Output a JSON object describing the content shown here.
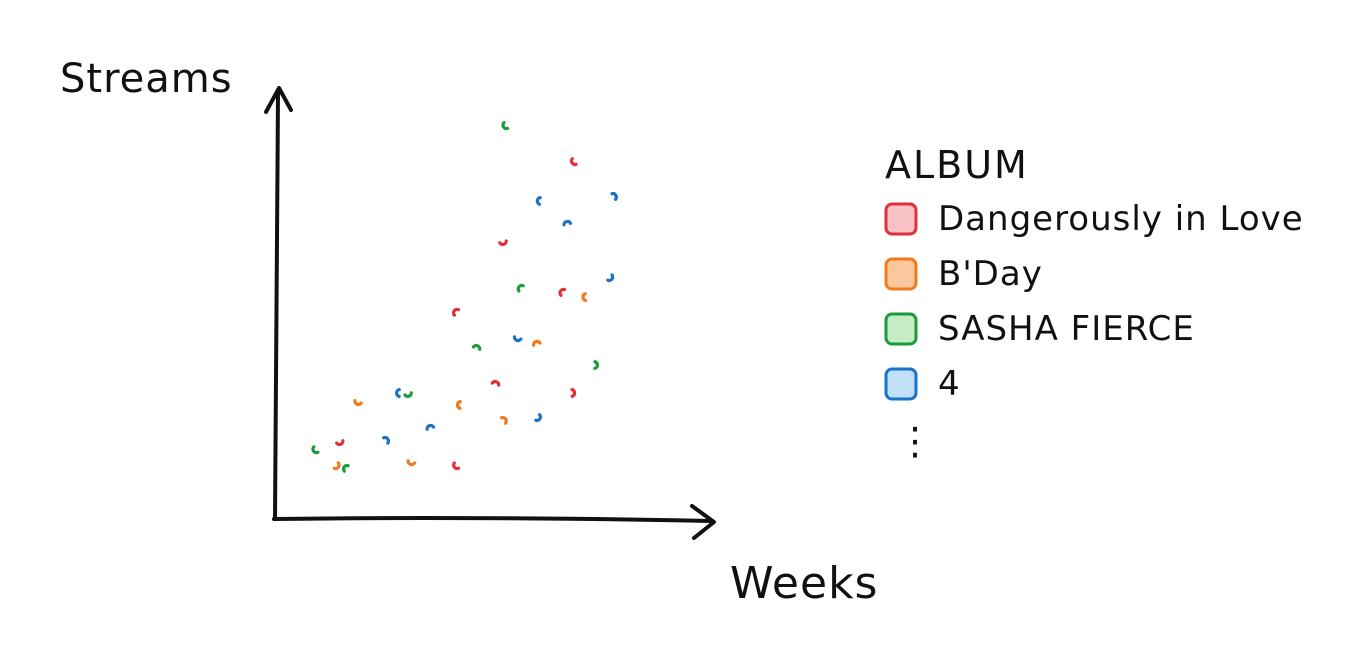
{
  "chart_data": {
    "type": "scatter",
    "title": "",
    "xlabel": "Weeks",
    "ylabel": "Streams",
    "xlim": [
      0,
      100
    ],
    "ylim": [
      0,
      100
    ],
    "grid": false,
    "legend": {
      "title": "ALBUM",
      "placement": "right",
      "more_indicator": "⋮"
    },
    "series": [
      {
        "name": "Dangerously in Love",
        "color": "#e0303a",
        "fill": "#f7c1c6",
        "points": [
          [
            56,
            66
          ],
          [
            75,
            86
          ],
          [
            44,
            48
          ],
          [
            54,
            30
          ],
          [
            74,
            28
          ],
          [
            13,
            16
          ],
          [
            44,
            10
          ],
          [
            72,
            53
          ]
        ]
      },
      {
        "name": "B'Day",
        "color": "#f07a1c",
        "fill": "#fbc79d",
        "points": [
          [
            18,
            26
          ],
          [
            45,
            25
          ],
          [
            65,
            40
          ],
          [
            56,
            21
          ],
          [
            12,
            10
          ],
          [
            32,
            11
          ],
          [
            78,
            52
          ]
        ]
      },
      {
        "name": "SASHA FIERCE",
        "color": "#1e9a3e",
        "fill": "#c6ecc6",
        "points": [
          [
            57,
            95
          ],
          [
            61,
            54
          ],
          [
            49,
            39
          ],
          [
            80,
            35
          ],
          [
            31,
            28
          ],
          [
            7,
            14
          ],
          [
            15,
            9
          ]
        ]
      },
      {
        "name": "4",
        "color": "#1a73c8",
        "fill": "#bfe0f7",
        "points": [
          [
            66,
            76
          ],
          [
            73,
            70
          ],
          [
            85,
            77
          ],
          [
            84,
            57
          ],
          [
            60,
            42
          ],
          [
            29,
            28
          ],
          [
            37,
            19
          ],
          [
            25,
            16
          ],
          [
            65,
            22
          ]
        ]
      }
    ]
  }
}
